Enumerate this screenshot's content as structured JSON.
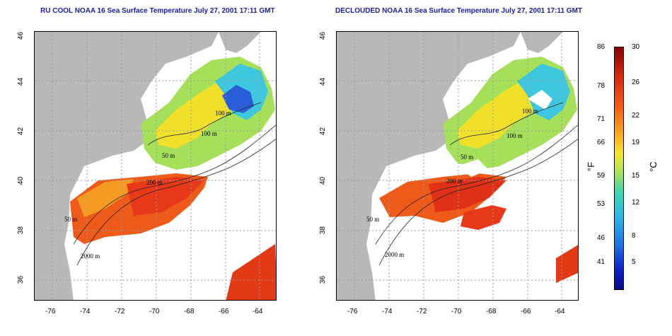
{
  "titles": {
    "left": "RU COOL NOAA 16 Sea Surface Temperature July 27, 2001 17:11 GMT",
    "right": "DECLOUDED NOAA 16 Sea Surface Temperature July 27, 2001 17:11 GMT"
  },
  "lat_ticks": [
    "46",
    "44",
    "42",
    "40",
    "38",
    "36"
  ],
  "lon_ticks": [
    "-76",
    "-74",
    "-72",
    "-70",
    "-68",
    "-66",
    "-64"
  ],
  "contour_labels": {
    "left": [
      "100 m",
      "100 m",
      "50 m",
      "200 m",
      "50 m",
      "2000 m"
    ],
    "right": [
      "100 m",
      "100 m",
      "50 m",
      "200 m",
      "50 m",
      "2000 m"
    ]
  },
  "colorbar": {
    "fahrenheit_ticks": [
      "86",
      "78",
      "71",
      "66",
      "59",
      "53",
      "46",
      "41"
    ],
    "celsius_ticks": [
      "30",
      "26",
      "22",
      "19",
      "15",
      "12",
      "8",
      "5"
    ],
    "fahrenheit_unit": "°F",
    "celsius_unit": "°C"
  },
  "colors": {
    "land": "#b8b8b8",
    "title": "#1a1aa8",
    "grid": "#9a9a9a"
  }
}
